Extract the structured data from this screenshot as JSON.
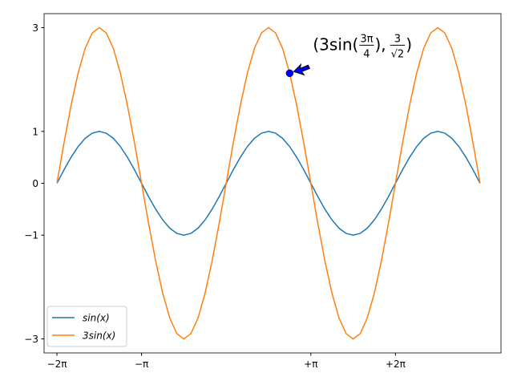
{
  "chart_data": {
    "type": "line",
    "x": [
      -6.283,
      -6.021,
      -5.76,
      -5.498,
      -5.236,
      -4.974,
      -4.712,
      -4.451,
      -4.189,
      -3.927,
      -3.665,
      -3.403,
      -3.142,
      -2.88,
      -2.618,
      -2.356,
      -2.094,
      -1.833,
      -1.571,
      -1.309,
      -1.047,
      -0.785,
      -0.524,
      -0.262,
      0,
      0.262,
      0.524,
      0.785,
      1.047,
      1.309,
      1.571,
      1.833,
      2.094,
      2.356,
      2.618,
      2.88,
      3.142,
      3.403,
      3.665,
      3.927,
      4.189,
      4.451,
      4.712,
      4.974,
      5.236,
      5.498,
      5.76,
      6.021,
      6.283,
      6.545,
      6.807,
      7.069,
      7.33,
      7.592,
      7.854,
      8.116,
      8.378,
      8.639,
      8.901,
      9.163,
      9.425
    ],
    "series": [
      {
        "name": "sin(x)",
        "color": "#1f77b4",
        "values": [
          0,
          0.259,
          0.5,
          0.707,
          0.866,
          0.966,
          1,
          0.966,
          0.866,
          0.707,
          0.5,
          0.259,
          0,
          -0.259,
          -0.5,
          -0.707,
          -0.866,
          -0.966,
          -1,
          -0.966,
          -0.866,
          -0.707,
          -0.5,
          -0.259,
          0,
          0.259,
          0.5,
          0.707,
          0.866,
          0.966,
          1,
          0.966,
          0.866,
          0.707,
          0.5,
          0.259,
          0,
          -0.259,
          -0.5,
          -0.707,
          -0.866,
          -0.966,
          -1,
          -0.966,
          -0.866,
          -0.707,
          -0.5,
          -0.259,
          0,
          0.259,
          0.5,
          0.707,
          0.866,
          0.966,
          1,
          0.966,
          0.866,
          0.707,
          0.5,
          0.259,
          0
        ]
      },
      {
        "name": "3sin(x)",
        "color": "#ff7f0e",
        "values": [
          0,
          0.776,
          1.5,
          2.121,
          2.598,
          2.898,
          3,
          2.898,
          2.598,
          2.121,
          1.5,
          0.776,
          0,
          -0.776,
          -1.5,
          -2.121,
          -2.598,
          -2.898,
          -3,
          -2.898,
          -2.598,
          -2.121,
          -1.5,
          -0.776,
          0,
          0.776,
          1.5,
          2.121,
          2.598,
          2.898,
          3,
          2.898,
          2.598,
          2.121,
          1.5,
          0.776,
          0,
          -0.776,
          -1.5,
          -2.121,
          -2.598,
          -2.898,
          -3,
          -2.898,
          -2.598,
          -2.121,
          -1.5,
          -0.776,
          0,
          0.776,
          1.5,
          2.121,
          2.598,
          2.898,
          3,
          2.898,
          2.598,
          2.121,
          1.5,
          0.776,
          0
        ]
      }
    ],
    "xlim": [
      -6.76,
      10.2
    ],
    "ylim": [
      -3.27,
      3.27
    ],
    "xticks": [
      {
        "value": -6.283,
        "label": "−2π"
      },
      {
        "value": -3.142,
        "label": "−π"
      },
      {
        "value": 3.142,
        "label": "+π"
      },
      {
        "value": 6.283,
        "label": "+2π"
      }
    ],
    "yticks": [
      3,
      1,
      0,
      {
        "value": -1,
        "label": "−1"
      },
      {
        "value": -3,
        "label": "−3"
      }
    ],
    "legend": "lower left",
    "annotation": {
      "x": 2.356,
      "y": 2.121,
      "color": "#0000ff",
      "parts": {
        "open": "(3sin(",
        "num1": "3π",
        "den1": "4",
        "mid": "),",
        "num2": "3",
        "den2": "√2",
        "close": ")"
      }
    }
  }
}
